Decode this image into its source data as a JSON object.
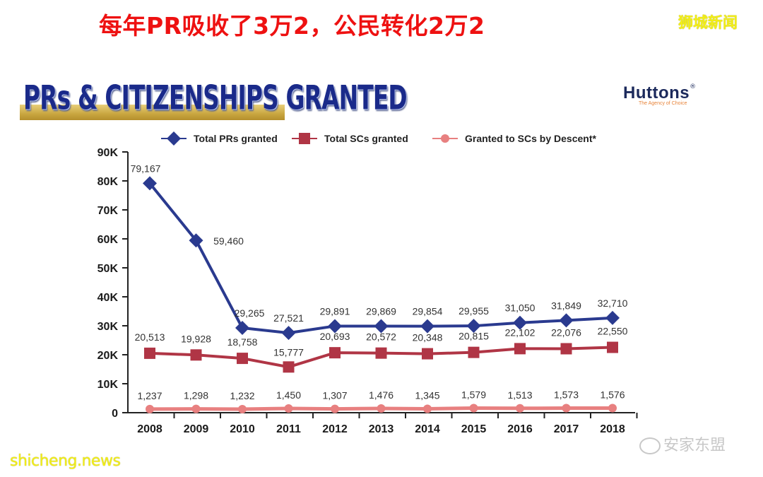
{
  "headline": "每年PR吸收了3万2，公民转化2万2",
  "corner_tag": "狮城新闻",
  "banner_title": "PRs & CITIZENSHIPS GRANTED",
  "brand": {
    "name": "Huttons",
    "registered": "®",
    "tagline": "The Agency of Choice"
  },
  "watermarks": {
    "left": "shicheng.news",
    "right": "安家东盟",
    "right_icon": "wechat-icon"
  },
  "colors": {
    "prs": "#2a3a8f",
    "scs": "#b03545",
    "descent": "#e88080",
    "headline": "#ee1111",
    "banner_text": "#1a2a8a",
    "banner_bar": "#c9a640"
  },
  "chart_data": {
    "type": "line",
    "title": "PRs & CITIZENSHIPS GRANTED",
    "xlabel": "",
    "ylabel": "",
    "ylim": [
      0,
      90000
    ],
    "grid": false,
    "legend_position": "top",
    "y_ticks": [
      "0",
      "10K",
      "20K",
      "30K",
      "40K",
      "50K",
      "60K",
      "70K",
      "80K",
      "90K"
    ],
    "categories": [
      "2008",
      "2009",
      "2010",
      "2011",
      "2012",
      "2013",
      "2014",
      "2015",
      "2016",
      "2017",
      "2018"
    ],
    "series": [
      {
        "name": "Total PRs granted",
        "marker": "diamond",
        "color": "#2a3a8f",
        "values": [
          79167,
          59460,
          29265,
          27521,
          29891,
          29869,
          29854,
          29955,
          31050,
          31849,
          32710
        ],
        "labels": [
          "79,167",
          "59,460",
          "29,265",
          "27,521",
          "29,891",
          "29,869",
          "29,854",
          "29,955",
          "31,050",
          "31,849",
          "32,710"
        ]
      },
      {
        "name": "Total SCs granted",
        "marker": "square",
        "color": "#b03545",
        "values": [
          20513,
          19928,
          18758,
          15777,
          20693,
          20572,
          20348,
          20815,
          22102,
          22076,
          22550
        ],
        "labels": [
          "20,513",
          "19,928",
          "18,758",
          "15,777",
          "20,693",
          "20,572",
          "20,348",
          "20,815",
          "22,102",
          "22,076",
          "22,550"
        ]
      },
      {
        "name": "Granted to SCs by Descent*",
        "marker": "circle",
        "color": "#e88080",
        "values": [
          1237,
          1298,
          1232,
          1450,
          1307,
          1476,
          1345,
          1579,
          1513,
          1573,
          1576
        ],
        "labels": [
          "1,237",
          "1,298",
          "1,232",
          "1,450",
          "1,307",
          "1,476",
          "1,345",
          "1,579",
          "1,513",
          "1,573",
          "1,576"
        ]
      }
    ]
  }
}
